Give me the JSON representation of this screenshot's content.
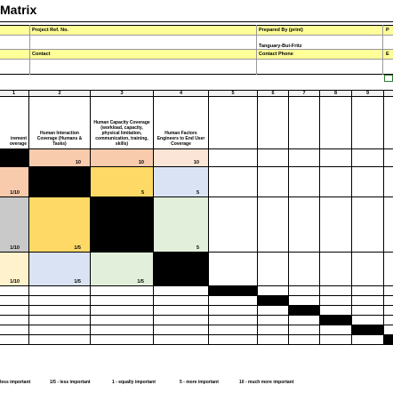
{
  "title": "Matrix",
  "header": {
    "project_ref_label": "Project Ref. No.",
    "prepared_by_label": "Prepared By (print)",
    "prepared_by_value": "Tanguary-Bui-Fritz",
    "contact_label": "Contact",
    "contact_phone_label": "Contact Phone",
    "right_label_1": "P",
    "right_label_2": "E"
  },
  "columns": [
    "1",
    "2",
    "3",
    "4",
    "5",
    "6",
    "7",
    "8",
    "9"
  ],
  "column_headers": [
    "irement overage",
    "Human Interaction Coverage (Humans & Tasks)",
    "Human Capacity Coverage (workload, capacity, physical limitation, communication, training, skills)",
    "Human Factors Engineers to End User Coverage"
  ],
  "matrix": {
    "rows": [
      [
        "",
        "10",
        "10",
        "10"
      ],
      [
        "1/10",
        "",
        "5",
        "5"
      ],
      [
        "1/10",
        "1/5",
        "",
        "5"
      ],
      [
        "1/10",
        "1/5",
        "1/5",
        ""
      ]
    ]
  },
  "legend": [
    "less important",
    "1/5 - less important",
    "1 - equally important",
    "5 - more important",
    "10 - much more important"
  ]
}
